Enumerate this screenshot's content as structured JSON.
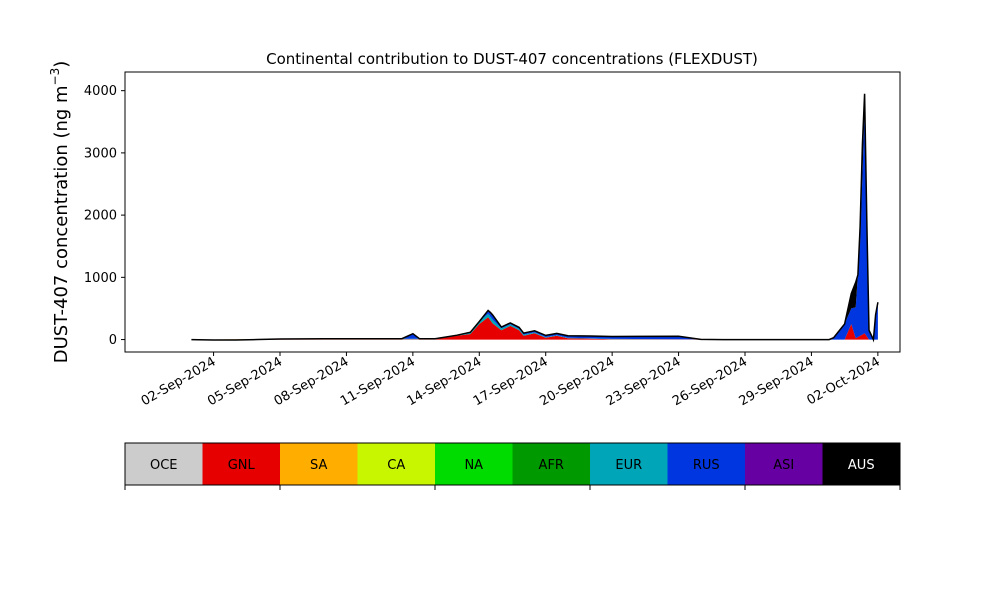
{
  "chart_data": {
    "type": "area",
    "stacked": true,
    "title": "Continental contribution to DUST-407 concentrations (FLEXDUST)",
    "ylabel": "DUST-407 concentration (ng m",
    "ylabel_superscript": "−3",
    "ylabel_close": ")",
    "xlabel": "",
    "ylim": [
      -200,
      4300
    ],
    "yticks": [
      0,
      1000,
      2000,
      3000,
      4000
    ],
    "xlim": [
      "2024-08-29",
      "2024-10-03"
    ],
    "xticks": [
      "02-Sep-2024",
      "05-Sep-2024",
      "08-Sep-2024",
      "11-Sep-2024",
      "14-Sep-2024",
      "17-Sep-2024",
      "20-Sep-2024",
      "23-Sep-2024",
      "26-Sep-2024",
      "29-Sep-2024",
      "02-Oct-2024"
    ],
    "grid": false,
    "legend": {
      "placement": "bottom",
      "entries": [
        {
          "label": "OCE",
          "color": "#cccccc",
          "text_color": "#000000"
        },
        {
          "label": "GNL",
          "color": "#e60000",
          "text_color": "#000000"
        },
        {
          "label": "SA",
          "color": "#ffae00",
          "text_color": "#000000"
        },
        {
          "label": "CA",
          "color": "#c8f500",
          "text_color": "#000000"
        },
        {
          "label": "NA",
          "color": "#00dc00",
          "text_color": "#000000"
        },
        {
          "label": "AFR",
          "color": "#009a00",
          "text_color": "#000000"
        },
        {
          "label": "EUR",
          "color": "#00a6b8",
          "text_color": "#000000"
        },
        {
          "label": "RUS",
          "color": "#0036e0",
          "text_color": "#000000"
        },
        {
          "label": "ASI",
          "color": "#6600a3",
          "text_color": "#000000"
        },
        {
          "label": "AUS",
          "color": "#000000",
          "text_color": "#ffffff"
        }
      ]
    },
    "series": [
      {
        "name": "GNL",
        "color": "#e60000",
        "points": [
          [
            "2024-09-01",
            0
          ],
          [
            "2024-09-07",
            8
          ],
          [
            "2024-09-12",
            5
          ],
          [
            "2024-09-13",
            60
          ],
          [
            "2024-09-13.6",
            90
          ],
          [
            "2024-09-14",
            250
          ],
          [
            "2024-09-14.4",
            360
          ],
          [
            "2024-09-14.6",
            260
          ],
          [
            "2024-09-15",
            150
          ],
          [
            "2024-09-15.4",
            220
          ],
          [
            "2024-09-15.8",
            150
          ],
          [
            "2024-09-16",
            60
          ],
          [
            "2024-09-16.5",
            100
          ],
          [
            "2024-09-17",
            30
          ],
          [
            "2024-09-17.5",
            60
          ],
          [
            "2024-09-18",
            20
          ],
          [
            "2024-09-19",
            15
          ],
          [
            "2024-09-20",
            5
          ],
          [
            "2024-09-25",
            0
          ],
          [
            "2024-09-30.5",
            0
          ],
          [
            "2024-09-30.8",
            250
          ],
          [
            "2024-10-01",
            20
          ],
          [
            "2024-10-01.4",
            100
          ],
          [
            "2024-10-01.6",
            0
          ],
          [
            "2024-10-01.9",
            0
          ],
          [
            "2024-10-02",
            0
          ]
        ]
      },
      {
        "name": "CA",
        "color": "#c8f500",
        "points": [
          [
            "2024-09-01",
            0
          ],
          [
            "2024-09-02",
            -10
          ],
          [
            "2024-09-03",
            -12
          ],
          [
            "2024-09-04",
            -5
          ],
          [
            "2024-09-05",
            0
          ],
          [
            "2024-10-02",
            0
          ]
        ]
      },
      {
        "name": "EUR",
        "color": "#00a6b8",
        "points": [
          [
            "2024-09-01",
            0
          ],
          [
            "2024-09-13",
            10
          ],
          [
            "2024-09-14",
            40
          ],
          [
            "2024-09-14.6",
            60
          ],
          [
            "2024-09-15",
            30
          ],
          [
            "2024-09-16",
            20
          ],
          [
            "2024-09-17",
            10
          ],
          [
            "2024-09-18",
            10
          ],
          [
            "2024-09-20",
            5
          ],
          [
            "2024-09-25",
            0
          ],
          [
            "2024-10-02",
            0
          ]
        ]
      },
      {
        "name": "RUS",
        "color": "#0036e0",
        "points": [
          [
            "2024-09-01",
            0
          ],
          [
            "2024-09-10.5",
            0
          ],
          [
            "2024-09-11",
            80
          ],
          [
            "2024-09-11.3",
            0
          ],
          [
            "2024-09-14",
            0
          ],
          [
            "2024-09-14.6",
            60
          ],
          [
            "2024-09-15",
            20
          ],
          [
            "2024-09-23",
            50
          ],
          [
            "2024-09-24",
            0
          ],
          [
            "2024-09-29.8",
            0
          ],
          [
            "2024-09-30",
            30
          ],
          [
            "2024-09-30.5",
            250
          ],
          [
            "2024-09-30.8",
            250
          ],
          [
            "2024-10-01",
            500
          ],
          [
            "2024-10-01.2",
            1500
          ],
          [
            "2024-10-01.4",
            3600
          ],
          [
            "2024-10-01.6",
            150
          ],
          [
            "2024-10-01.8",
            0
          ],
          [
            "2024-10-01.9",
            400
          ],
          [
            "2024-10-02",
            600
          ]
        ]
      },
      {
        "name": "AUS",
        "color": "#000000",
        "points": [
          [
            "2024-09-01",
            0
          ],
          [
            "2024-09-14",
            0
          ],
          [
            "2024-09-14.5",
            20
          ],
          [
            "2024-09-15",
            0
          ],
          [
            "2024-09-30.5",
            0
          ],
          [
            "2024-10-01",
            400
          ],
          [
            "2024-10-01.1",
            0
          ],
          [
            "2024-10-01.3",
            500
          ],
          [
            "2024-10-01.5",
            0
          ],
          [
            "2024-10-02",
            0
          ]
        ]
      }
    ]
  }
}
